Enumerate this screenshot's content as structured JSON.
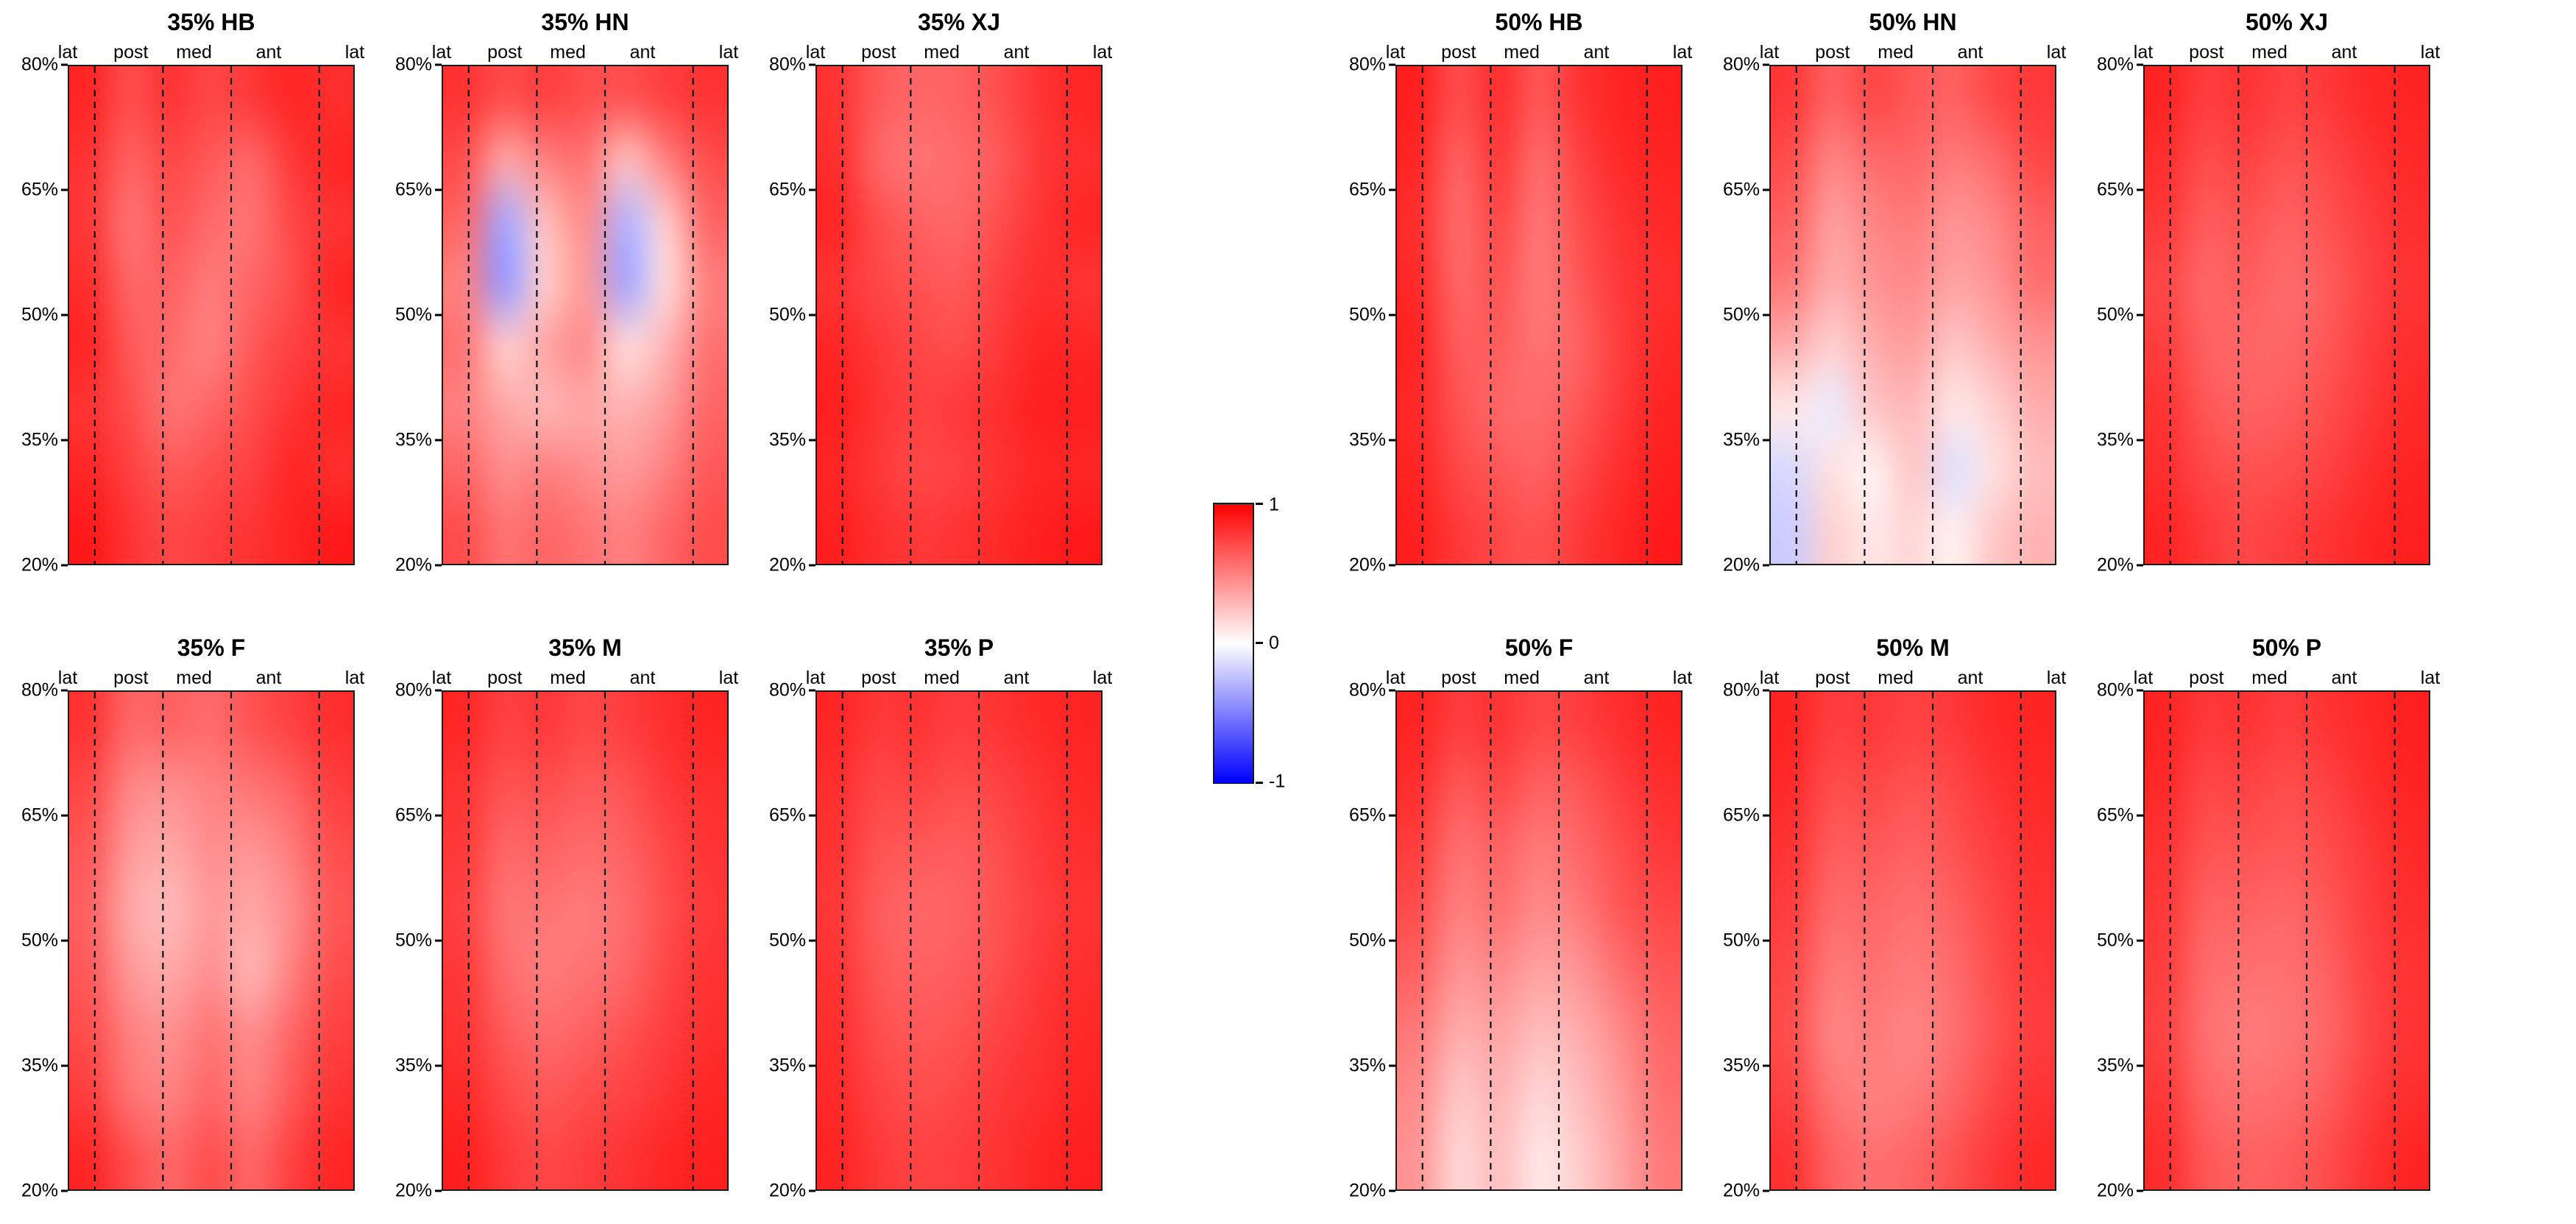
{
  "colorbar": {
    "max_label": "1",
    "mid_label": "0",
    "min_label": "-1",
    "max_color": "#ff0000",
    "mid_color": "#ffffff",
    "min_color": "#0000ff"
  },
  "axis": {
    "top_labels": [
      "lat",
      "post",
      "med",
      "ant",
      "lat"
    ],
    "top_label_positions": [
      0.0,
      0.22,
      0.44,
      0.7,
      1.0
    ],
    "y_tick_labels": [
      "80%",
      "65%",
      "50%",
      "35%",
      "20%"
    ],
    "y_tick_positions": [
      0,
      0.25,
      0.5,
      0.75,
      1
    ],
    "dashed_line_positions": [
      0.09,
      0.33,
      0.57,
      0.88
    ]
  },
  "chart_data": {
    "type": "heatmap",
    "colormap": "blue-white-red",
    "value_range": [
      -1,
      1
    ],
    "x_regions": [
      "lat",
      "post",
      "med",
      "ant",
      "lat"
    ],
    "y_range_labels": [
      "80%",
      "65%",
      "50%",
      "35%",
      "20%"
    ],
    "groups": [
      {
        "id": "left",
        "panels": [
          {
            "title": "35% HB",
            "grid": [
              [
                0.85,
                0.7,
                0.8,
                0.72,
                0.78,
                0.85,
                0.82
              ],
              [
                0.8,
                0.62,
                0.72,
                0.65,
                0.6,
                0.78,
                0.85
              ],
              [
                0.78,
                0.55,
                0.68,
                0.58,
                0.55,
                0.72,
                0.8
              ],
              [
                0.82,
                0.6,
                0.62,
                0.52,
                0.6,
                0.7,
                0.85
              ],
              [
                0.85,
                0.65,
                0.58,
                0.5,
                0.65,
                0.75,
                0.8
              ],
              [
                0.8,
                0.7,
                0.55,
                0.6,
                0.7,
                0.8,
                0.85
              ],
              [
                0.85,
                0.75,
                0.65,
                0.7,
                0.75,
                0.85,
                0.82
              ],
              [
                0.9,
                0.8,
                0.72,
                0.76,
                0.8,
                0.86,
                0.9
              ]
            ]
          },
          {
            "title": "35% HN",
            "grid": [
              [
                0.8,
                0.7,
                0.75,
                0.7,
                0.68,
                0.75,
                0.8
              ],
              [
                0.7,
                0.35,
                0.5,
                0.55,
                0.25,
                0.5,
                0.7
              ],
              [
                0.6,
                -0.35,
                0.25,
                0.45,
                -0.3,
                0.2,
                0.6
              ],
              [
                0.5,
                -0.4,
                0.2,
                0.4,
                -0.35,
                0.15,
                0.5
              ],
              [
                0.55,
                0.2,
                0.35,
                0.45,
                0.15,
                0.3,
                0.55
              ],
              [
                0.5,
                0.35,
                0.3,
                0.35,
                0.3,
                0.4,
                0.6
              ],
              [
                0.6,
                0.45,
                0.5,
                0.45,
                0.4,
                0.5,
                0.65
              ],
              [
                0.7,
                0.55,
                0.6,
                0.55,
                0.5,
                0.6,
                0.7
              ]
            ]
          },
          {
            "title": "35% XJ",
            "grid": [
              [
                0.8,
                0.65,
                0.6,
                0.62,
                0.7,
                0.8,
                0.85
              ],
              [
                0.82,
                0.6,
                0.55,
                0.58,
                0.65,
                0.78,
                0.82
              ],
              [
                0.85,
                0.7,
                0.62,
                0.6,
                0.7,
                0.8,
                0.85
              ],
              [
                0.8,
                0.72,
                0.68,
                0.65,
                0.75,
                0.82,
                0.8
              ],
              [
                0.85,
                0.78,
                0.72,
                0.7,
                0.78,
                0.85,
                0.85
              ],
              [
                0.88,
                0.8,
                0.75,
                0.78,
                0.82,
                0.88,
                0.88
              ],
              [
                0.85,
                0.78,
                0.72,
                0.75,
                0.8,
                0.85,
                0.85
              ],
              [
                0.88,
                0.82,
                0.78,
                0.8,
                0.84,
                0.88,
                0.9
              ]
            ]
          },
          {
            "title": "35% F",
            "grid": [
              [
                0.8,
                0.6,
                0.62,
                0.58,
                0.68,
                0.75,
                0.82
              ],
              [
                0.72,
                0.48,
                0.45,
                0.5,
                0.55,
                0.62,
                0.76
              ],
              [
                0.66,
                0.4,
                0.35,
                0.45,
                0.42,
                0.52,
                0.7
              ],
              [
                0.62,
                0.34,
                0.28,
                0.4,
                0.35,
                0.46,
                0.66
              ],
              [
                0.65,
                0.4,
                0.34,
                0.44,
                0.3,
                0.5,
                0.7
              ],
              [
                0.7,
                0.5,
                0.44,
                0.54,
                0.45,
                0.6,
                0.75
              ],
              [
                0.76,
                0.55,
                0.5,
                0.6,
                0.5,
                0.66,
                0.8
              ],
              [
                0.85,
                0.7,
                0.6,
                0.7,
                0.6,
                0.75,
                0.85
              ]
            ]
          },
          {
            "title": "35% M",
            "grid": [
              [
                0.85,
                0.75,
                0.78,
                0.72,
                0.76,
                0.82,
                0.86
              ],
              [
                0.8,
                0.68,
                0.7,
                0.65,
                0.68,
                0.78,
                0.82
              ],
              [
                0.78,
                0.6,
                0.62,
                0.58,
                0.62,
                0.72,
                0.8
              ],
              [
                0.75,
                0.55,
                0.55,
                0.52,
                0.58,
                0.7,
                0.78
              ],
              [
                0.78,
                0.58,
                0.52,
                0.55,
                0.6,
                0.72,
                0.8
              ],
              [
                0.8,
                0.65,
                0.58,
                0.62,
                0.68,
                0.76,
                0.82
              ],
              [
                0.84,
                0.72,
                0.66,
                0.7,
                0.74,
                0.8,
                0.85
              ],
              [
                0.88,
                0.78,
                0.72,
                0.76,
                0.8,
                0.85,
                0.88
              ]
            ]
          },
          {
            "title": "35% P",
            "grid": [
              [
                0.85,
                0.78,
                0.8,
                0.76,
                0.8,
                0.84,
                0.86
              ],
              [
                0.82,
                0.72,
                0.74,
                0.7,
                0.74,
                0.8,
                0.84
              ],
              [
                0.8,
                0.68,
                0.66,
                0.64,
                0.7,
                0.78,
                0.82
              ],
              [
                0.78,
                0.64,
                0.6,
                0.62,
                0.68,
                0.76,
                0.8
              ],
              [
                0.8,
                0.66,
                0.62,
                0.64,
                0.7,
                0.78,
                0.82
              ],
              [
                0.82,
                0.7,
                0.66,
                0.68,
                0.74,
                0.8,
                0.84
              ],
              [
                0.84,
                0.74,
                0.7,
                0.72,
                0.78,
                0.82,
                0.86
              ],
              [
                0.86,
                0.78,
                0.74,
                0.76,
                0.8,
                0.85,
                0.88
              ]
            ]
          }
        ]
      },
      {
        "id": "right",
        "panels": [
          {
            "title": "50% HB",
            "grid": [
              [
                0.88,
                0.7,
                0.82,
                0.66,
                0.8,
                0.86,
                0.88
              ],
              [
                0.85,
                0.62,
                0.78,
                0.58,
                0.74,
                0.84,
                0.86
              ],
              [
                0.82,
                0.58,
                0.72,
                0.54,
                0.7,
                0.8,
                0.84
              ],
              [
                0.84,
                0.6,
                0.68,
                0.52,
                0.66,
                0.78,
                0.82
              ],
              [
                0.86,
                0.64,
                0.64,
                0.55,
                0.62,
                0.76,
                0.84
              ],
              [
                0.84,
                0.68,
                0.6,
                0.58,
                0.66,
                0.78,
                0.86
              ],
              [
                0.86,
                0.72,
                0.66,
                0.62,
                0.72,
                0.82,
                0.88
              ],
              [
                0.88,
                0.78,
                0.72,
                0.68,
                0.78,
                0.85,
                0.9
              ]
            ]
          },
          {
            "title": "50% HN",
            "grid": [
              [
                0.78,
                0.62,
                0.72,
                0.66,
                0.62,
                0.72,
                0.78
              ],
              [
                0.7,
                0.48,
                0.58,
                0.6,
                0.52,
                0.58,
                0.72
              ],
              [
                0.62,
                0.38,
                0.48,
                0.52,
                0.42,
                0.48,
                0.62
              ],
              [
                0.52,
                0.32,
                0.42,
                0.46,
                0.36,
                0.42,
                0.56
              ],
              [
                0.32,
                0.18,
                0.32,
                0.38,
                0.22,
                0.32,
                0.42
              ],
              [
                0.1,
                -0.08,
                0.22,
                0.28,
                0.1,
                0.18,
                0.32
              ],
              [
                -0.15,
                0.12,
                0.05,
                0.22,
                -0.12,
                0.12,
                0.26
              ],
              [
                -0.2,
                0.18,
                0.1,
                0.16,
                0.06,
                0.22,
                0.3
              ]
            ]
          },
          {
            "title": "50% XJ",
            "grid": [
              [
                0.86,
                0.76,
                0.8,
                0.74,
                0.78,
                0.84,
                0.86
              ],
              [
                0.82,
                0.7,
                0.74,
                0.68,
                0.72,
                0.8,
                0.84
              ],
              [
                0.78,
                0.64,
                0.68,
                0.62,
                0.68,
                0.76,
                0.82
              ],
              [
                0.72,
                0.6,
                0.64,
                0.58,
                0.64,
                0.74,
                0.8
              ],
              [
                0.76,
                0.62,
                0.6,
                0.6,
                0.66,
                0.76,
                0.82
              ],
              [
                0.8,
                0.66,
                0.62,
                0.64,
                0.7,
                0.78,
                0.84
              ],
              [
                0.82,
                0.72,
                0.68,
                0.7,
                0.74,
                0.82,
                0.86
              ],
              [
                0.86,
                0.78,
                0.72,
                0.76,
                0.8,
                0.85,
                0.88
              ]
            ]
          },
          {
            "title": "50% F",
            "grid": [
              [
                0.86,
                0.76,
                0.8,
                0.72,
                0.76,
                0.82,
                0.86
              ],
              [
                0.82,
                0.66,
                0.72,
                0.62,
                0.66,
                0.76,
                0.82
              ],
              [
                0.76,
                0.56,
                0.62,
                0.52,
                0.6,
                0.7,
                0.78
              ],
              [
                0.7,
                0.5,
                0.56,
                0.46,
                0.52,
                0.66,
                0.72
              ],
              [
                0.62,
                0.42,
                0.46,
                0.36,
                0.42,
                0.56,
                0.66
              ],
              [
                0.52,
                0.32,
                0.36,
                0.26,
                0.32,
                0.46,
                0.6
              ],
              [
                0.46,
                0.22,
                0.3,
                0.16,
                0.26,
                0.4,
                0.56
              ],
              [
                0.42,
                0.16,
                0.26,
                0.1,
                0.2,
                0.36,
                0.52
              ]
            ]
          },
          {
            "title": "50% M",
            "grid": [
              [
                0.86,
                0.76,
                0.78,
                0.74,
                0.78,
                0.84,
                0.86
              ],
              [
                0.84,
                0.7,
                0.72,
                0.68,
                0.72,
                0.8,
                0.84
              ],
              [
                0.8,
                0.64,
                0.66,
                0.62,
                0.68,
                0.76,
                0.82
              ],
              [
                0.76,
                0.58,
                0.6,
                0.56,
                0.62,
                0.72,
                0.8
              ],
              [
                0.72,
                0.52,
                0.56,
                0.52,
                0.58,
                0.7,
                0.78
              ],
              [
                0.7,
                0.48,
                0.52,
                0.48,
                0.56,
                0.68,
                0.76
              ],
              [
                0.74,
                0.54,
                0.5,
                0.52,
                0.6,
                0.72,
                0.8
              ],
              [
                0.8,
                0.62,
                0.56,
                0.6,
                0.68,
                0.78,
                0.84
              ]
            ]
          },
          {
            "title": "50% P",
            "grid": [
              [
                0.86,
                0.78,
                0.8,
                0.76,
                0.8,
                0.84,
                0.88
              ],
              [
                0.84,
                0.72,
                0.74,
                0.7,
                0.74,
                0.82,
                0.86
              ],
              [
                0.8,
                0.68,
                0.68,
                0.66,
                0.7,
                0.78,
                0.84
              ],
              [
                0.78,
                0.62,
                0.62,
                0.6,
                0.66,
                0.76,
                0.82
              ],
              [
                0.76,
                0.58,
                0.56,
                0.56,
                0.62,
                0.74,
                0.8
              ],
              [
                0.74,
                0.56,
                0.52,
                0.54,
                0.6,
                0.72,
                0.8
              ],
              [
                0.78,
                0.6,
                0.56,
                0.58,
                0.64,
                0.76,
                0.82
              ],
              [
                0.82,
                0.66,
                0.62,
                0.64,
                0.7,
                0.8,
                0.86
              ]
            ]
          }
        ]
      }
    ]
  }
}
